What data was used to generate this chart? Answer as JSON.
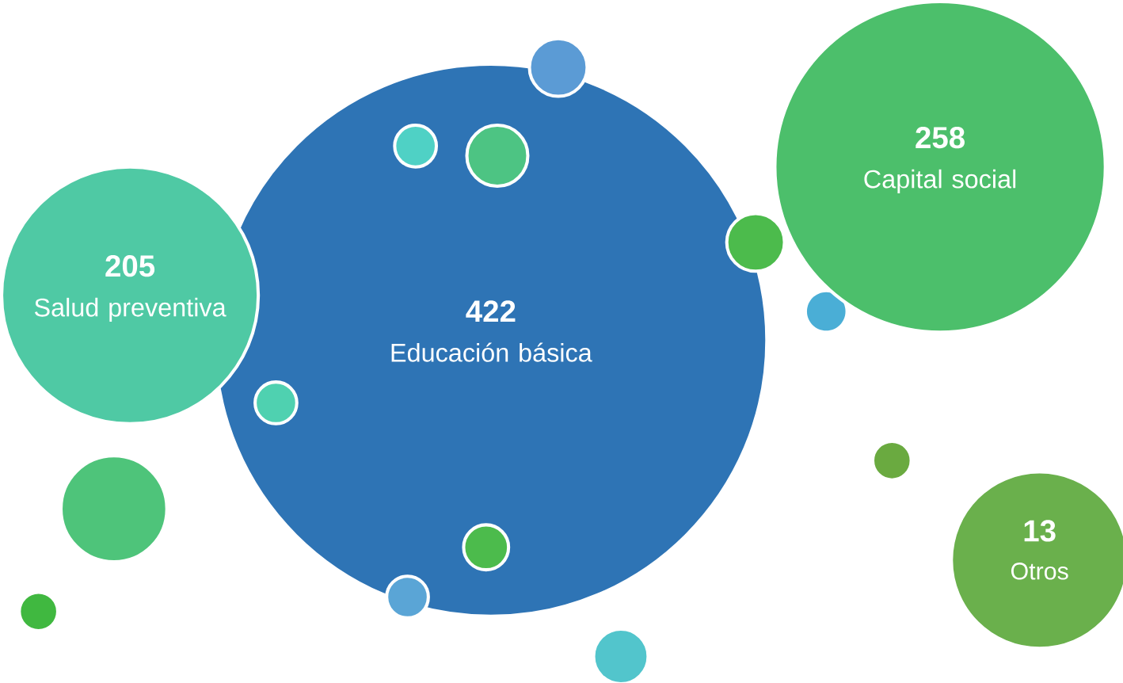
{
  "chart_data": {
    "type": "other",
    "data_labels": true,
    "categories": [
      "Educación básica",
      "Capital social",
      "Salud preventiva",
      "Otros"
    ],
    "values": [
      422,
      258,
      205,
      13
    ],
    "colors": [
      "#2e74b5",
      "#4cbf6b",
      "#4fc9a4",
      "#6ab04c"
    ]
  }
}
